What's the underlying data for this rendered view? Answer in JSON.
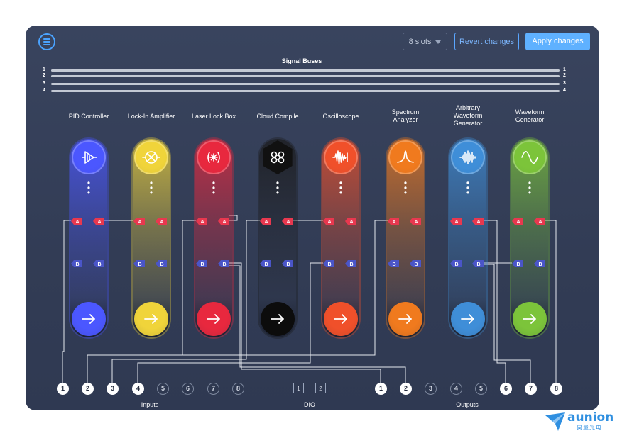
{
  "toolbar": {
    "menu_icon": "hamburger-menu-icon",
    "slots_label": "8 slots",
    "revert_label": "Revert changes",
    "apply_label": "Apply changes"
  },
  "buses": {
    "title": "Signal Buses",
    "numbers": [
      "1",
      "2",
      "3",
      "4"
    ]
  },
  "instruments": [
    {
      "label": "PID Controller",
      "icon": "amplifier-triangle-icon",
      "color": "#4b57ff"
    },
    {
      "label": "Lock-In Amplifier",
      "icon": "crossed-circle-icon",
      "color": "#f0d43a"
    },
    {
      "label": "Laser Lock Box",
      "icon": "laser-burst-icon",
      "color": "#e8283e"
    },
    {
      "label": "Cloud Compile",
      "icon": "cloud-compile-hexagon-icon",
      "color": "#1a1a1a"
    },
    {
      "label": "Oscilloscope",
      "icon": "waveform-burst-icon",
      "color": "#f0502a"
    },
    {
      "label": "Spectrum\nAnalyzer",
      "icon": "spectrum-peak-icon",
      "color": "#f07a1e"
    },
    {
      "label": "Arbitrary\nWaveform\nGenerator",
      "icon": "arbitrary-wave-icon",
      "color": "#3f8ed8"
    },
    {
      "label": "Waveform\nGenerator",
      "icon": "sine-wave-icon",
      "color": "#7cc43a"
    }
  ],
  "ports": {
    "a": "A",
    "b": "B"
  },
  "inputs": {
    "label": "Inputs",
    "items": [
      "1",
      "2",
      "3",
      "4",
      "5",
      "6",
      "7",
      "8"
    ],
    "active": [
      true,
      true,
      true,
      true,
      false,
      false,
      false,
      false
    ]
  },
  "dio": {
    "label": "DIO",
    "items": [
      "1",
      "2"
    ]
  },
  "outputs": {
    "label": "Outputs",
    "items": [
      "1",
      "2",
      "3",
      "4",
      "5",
      "6",
      "7",
      "8"
    ],
    "active": [
      true,
      true,
      false,
      false,
      false,
      true,
      true,
      true
    ]
  },
  "brand": {
    "name": "aunion",
    "subtitle": "昊量光电",
    "color": "#2f8fe0"
  },
  "colors": {
    "port_a": "#e8384f",
    "port_b": "#4a55c8",
    "accent": "#5fb1ff"
  }
}
